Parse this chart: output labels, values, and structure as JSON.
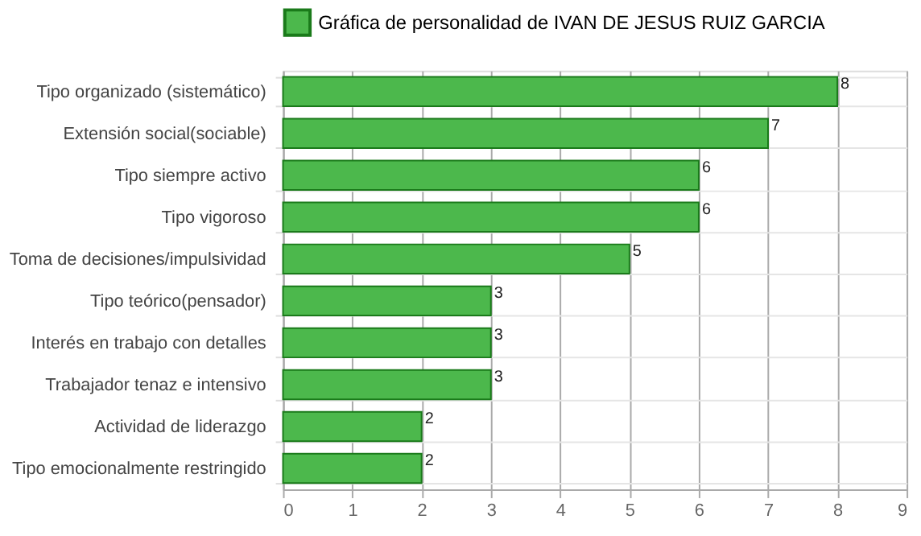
{
  "chart_data": {
    "type": "bar",
    "orientation": "horizontal",
    "categories": [
      "Tipo organizado (sistemático)",
      "Extensión social(sociable)",
      "Tipo siempre activo",
      "Tipo vigoroso",
      "Toma de decisiones/impulsividad",
      "Tipo teórico(pensador)",
      "Interés en trabajo con detalles",
      "Trabajador tenaz e intensivo",
      "Actividad de liderazgo",
      "Tipo emocionalmente restringido"
    ],
    "series": [
      {
        "name": "Gráfica de personalidad de IVAN DE JESUS RUIZ GARCIA",
        "color": "#4cb84c",
        "values": [
          8,
          7,
          6,
          6,
          5,
          3,
          3,
          3,
          2,
          2
        ]
      }
    ],
    "xlim": [
      0,
      9
    ],
    "xticks": [
      0,
      1,
      2,
      3,
      4,
      5,
      6,
      7,
      8,
      9
    ],
    "grid": true,
    "legend": "top",
    "data_labels": true
  }
}
